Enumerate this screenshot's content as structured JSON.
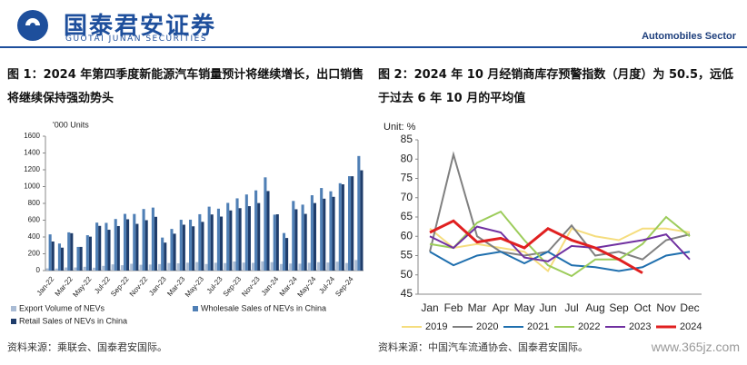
{
  "header": {
    "brand": "国泰君安证券",
    "brand_en": "GUOTAI JUNAN SECURITIES",
    "sector": "Automobiles Sector"
  },
  "watermark": "www.365jz.com",
  "chart_data": [
    {
      "type": "bar",
      "title": "图 1：2024 年第四季度新能源汽车销量预计将继续增长，出口销售将继续保持强劲势头",
      "y_label": "'000 Units",
      "source": "资料来源：乘联会、国泰君安国际。",
      "categories": [
        "Jan-22",
        null,
        "Mar-22",
        null,
        "May-22",
        null,
        "Jul-22",
        null,
        "Sep-22",
        null,
        "Nov-22",
        null,
        "Jan-23",
        null,
        "Mar-23",
        null,
        "May-23",
        null,
        "Jul-23",
        null,
        "Sep-23",
        null,
        "Nov-23",
        null,
        "Jan-24",
        null,
        "Mar-24",
        null,
        "May-24",
        null,
        "Jul-24",
        null,
        "Sep-24",
        null
      ],
      "ylim": [
        0,
        1600
      ],
      "yticks": [
        0,
        200,
        400,
        600,
        800,
        1000,
        1200,
        1400,
        1600
      ],
      "series": [
        {
          "name": "Export Volume of NEVs",
          "color": "#a9bbd4",
          "values": [
            26,
            24,
            37,
            37,
            45,
            34,
            56,
            74,
            64,
            81,
            69,
            72,
            77,
            90,
            86,
            94,
            101,
            78,
            93,
            89,
            108,
            95,
            92,
            110,
            100,
            78,
            84,
            82,
            93,
            100,
            96,
            106,
            90,
            126
          ]
        },
        {
          "name": "Wholesale Sales of NEVs in China",
          "color": "#4f7fb5",
          "values": [
            431,
            322,
            455,
            282,
            421,
            571,
            568,
            614,
            675,
            674,
            733,
            750,
            393,
            496,
            605,
            606,
            671,
            761,
            737,
            806,
            860,
            906,
            955,
            1110,
            666,
            447,
            829,
            785,
            897,
            983,
            944,
            1040,
            1124,
            1364
          ]
        },
        {
          "name": "Retail Sales of NEVs in China",
          "color": "#1f3d6b",
          "values": [
            346,
            273,
            445,
            282,
            404,
            532,
            486,
            530,
            611,
            556,
            600,
            640,
            333,
            439,
            546,
            527,
            580,
            668,
            643,
            716,
            743,
            767,
            804,
            947,
            670,
            388,
            730,
            675,
            804,
            856,
            878,
            1027,
            1123,
            1194
          ]
        }
      ]
    },
    {
      "type": "line",
      "title": "图 2：2024 年 10 月经销商库存预警指数（月度）为 50.5，远低于过去 6 年 10 月的平均值",
      "y_label": "Unit: %",
      "source": "资料来源：中国汽车流通协会、国泰君安国际。",
      "categories": [
        "Jan",
        "Feb",
        "Mar",
        "Apr",
        "May",
        "Jun",
        "Jul",
        "Aug",
        "Sep",
        "Oct",
        "Nov",
        "Dec"
      ],
      "ylim": [
        45,
        85
      ],
      "yticks": [
        45,
        50,
        55,
        60,
        65,
        70,
        75,
        80,
        85
      ],
      "series": [
        {
          "name": "2019",
          "color": "#f5dd7e",
          "values": [
            62,
            57,
            58,
            57,
            56,
            51,
            62,
            60,
            59,
            62,
            62,
            61
          ]
        },
        {
          "name": "2020",
          "color": "#808080",
          "values": [
            56,
            81.2,
            60,
            56,
            55,
            56,
            62.8,
            55,
            56,
            54,
            59,
            60.5
          ]
        },
        {
          "name": "2021",
          "color": "#1f6fae",
          "values": [
            56,
            52.5,
            55,
            56,
            53,
            56,
            52.5,
            52,
            51,
            52,
            55,
            56
          ]
        },
        {
          "name": "2022",
          "color": "#9ccc5a",
          "values": [
            58,
            57,
            63.5,
            66.4,
            59,
            52.5,
            49.7,
            54,
            54,
            58,
            65,
            60
          ]
        },
        {
          "name": "2023",
          "color": "#7030a0",
          "values": [
            60,
            57,
            62.5,
            61,
            54.5,
            53.5,
            57.5,
            57,
            58,
            59,
            60.5,
            54
          ]
        },
        {
          "name": "2024",
          "color": "#e02020",
          "values": [
            61,
            64,
            58.5,
            59.5,
            57,
            62,
            59,
            57,
            54,
            50.5,
            null,
            null
          ]
        }
      ]
    }
  ]
}
